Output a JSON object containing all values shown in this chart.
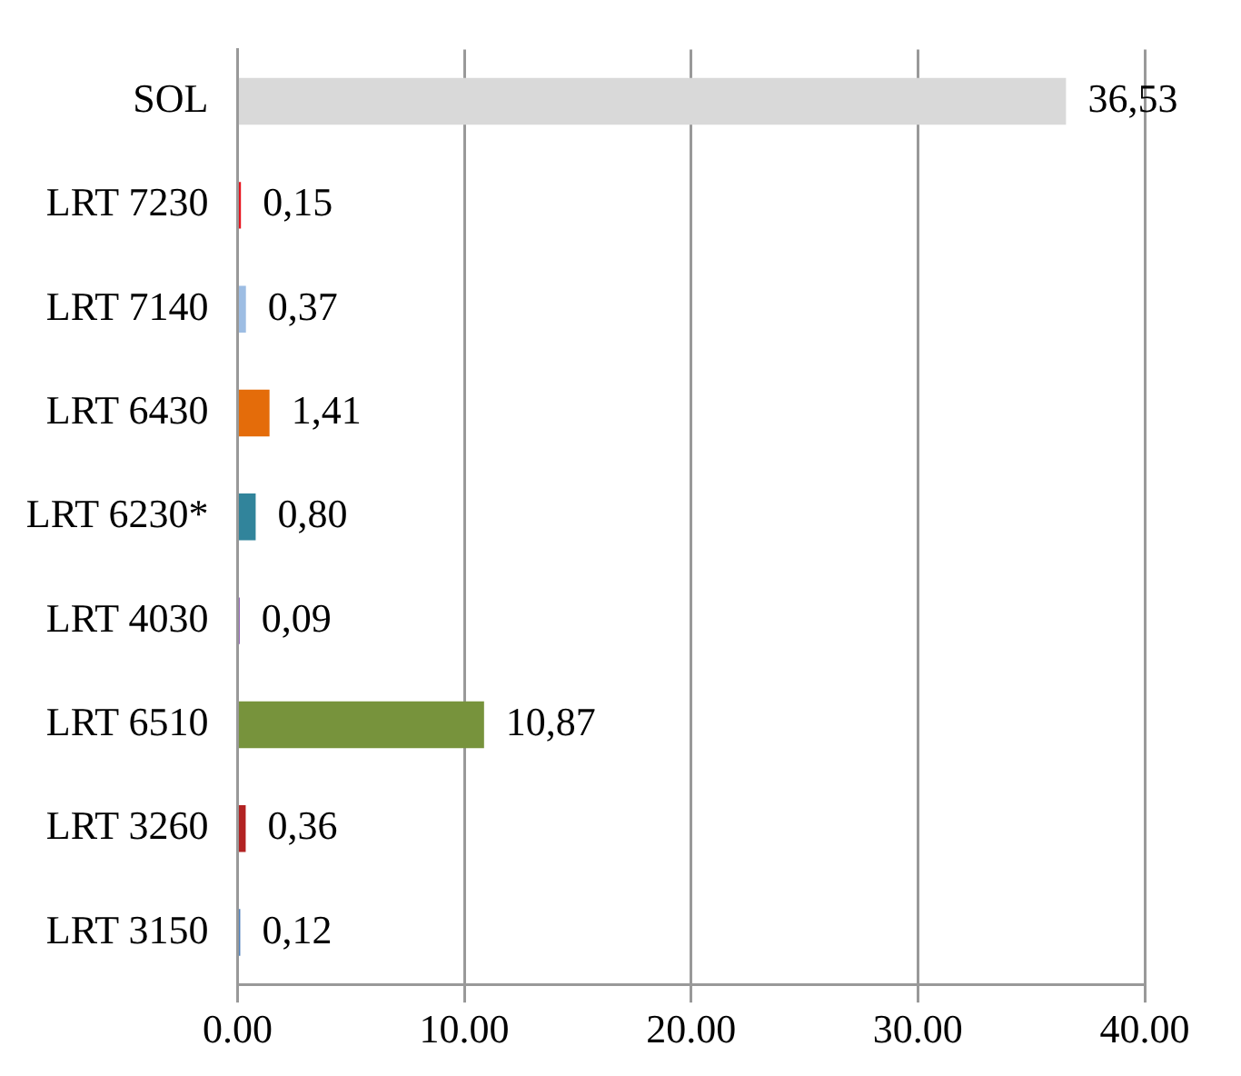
{
  "chart_data": {
    "type": "bar",
    "orientation": "horizontal",
    "categories": [
      "SOL",
      "LRT 7230",
      "LRT 7140",
      "LRT 6430",
      "LRT 6230*",
      "LRT 4030",
      "LRT 6510",
      "LRT 3260",
      "LRT 3150"
    ],
    "values": [
      36.53,
      0.15,
      0.37,
      1.41,
      0.8,
      0.09,
      10.87,
      0.36,
      0.12
    ],
    "value_labels": [
      "36,53",
      "0,15",
      "0,37",
      "1,41",
      "0,80",
      "0,09",
      "10,87",
      "0,36",
      "0,12"
    ],
    "colors": [
      "#d9d9d9",
      "#e8141e",
      "#9dbde3",
      "#e46c0a",
      "#31849b",
      "#7030a0",
      "#77933c",
      "#b22222",
      "#4f81bd"
    ],
    "xlim": [
      0,
      40
    ],
    "xticks": [
      {
        "value": 0,
        "label": "0.00"
      },
      {
        "value": 10,
        "label": "10.00"
      },
      {
        "value": 20,
        "label": "20.00"
      },
      {
        "value": 30,
        "label": "30.00"
      },
      {
        "value": 40,
        "label": "40.00"
      }
    ],
    "grid": "x",
    "legend": false
  }
}
